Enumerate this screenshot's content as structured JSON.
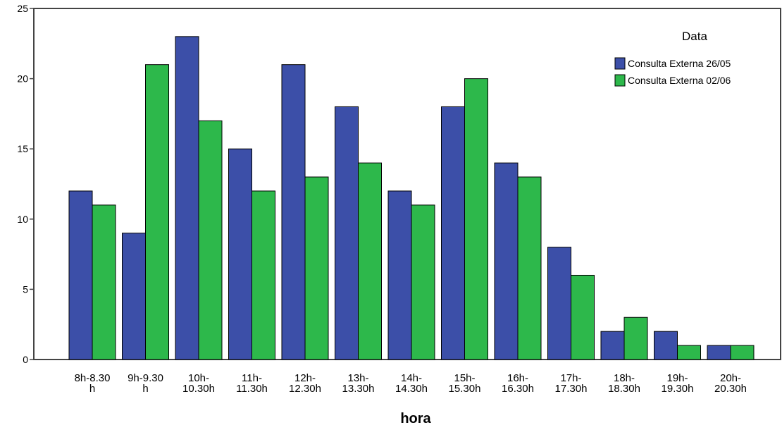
{
  "chart_data": {
    "type": "bar",
    "title": "",
    "xlabel": "hora",
    "ylabel": "",
    "ylim": [
      0,
      25
    ],
    "yticks": [
      0,
      5,
      10,
      15,
      20,
      25
    ],
    "grid": false,
    "legend_position": "top-right",
    "legend_title": "Data",
    "categories": [
      [
        "8h-8.30",
        "h"
      ],
      [
        "9h-9.30",
        "h"
      ],
      [
        "10h-",
        "10.30h"
      ],
      [
        "11h-",
        "11.30h"
      ],
      [
        "12h-",
        "12.30h"
      ],
      [
        "13h-",
        "13.30h"
      ],
      [
        "14h-",
        "14.30h"
      ],
      [
        "15h-",
        "15.30h"
      ],
      [
        "16h-",
        "16.30h"
      ],
      [
        "17h-",
        "17.30h"
      ],
      [
        "18h-",
        "18.30h"
      ],
      [
        "19h-",
        "19.30h"
      ],
      [
        "20h-",
        "20.30h"
      ]
    ],
    "series": [
      {
        "name": "Consulta Externa 26/05",
        "color": "#3c4fa8",
        "values": [
          12,
          9,
          23,
          15,
          21,
          18,
          12,
          18,
          14,
          8,
          2,
          2,
          1
        ]
      },
      {
        "name": "Consulta Externa 02/06",
        "color": "#2db84b",
        "values": [
          11,
          21,
          17,
          12,
          13,
          14,
          11,
          20,
          13,
          6,
          3,
          1,
          1
        ]
      }
    ]
  }
}
